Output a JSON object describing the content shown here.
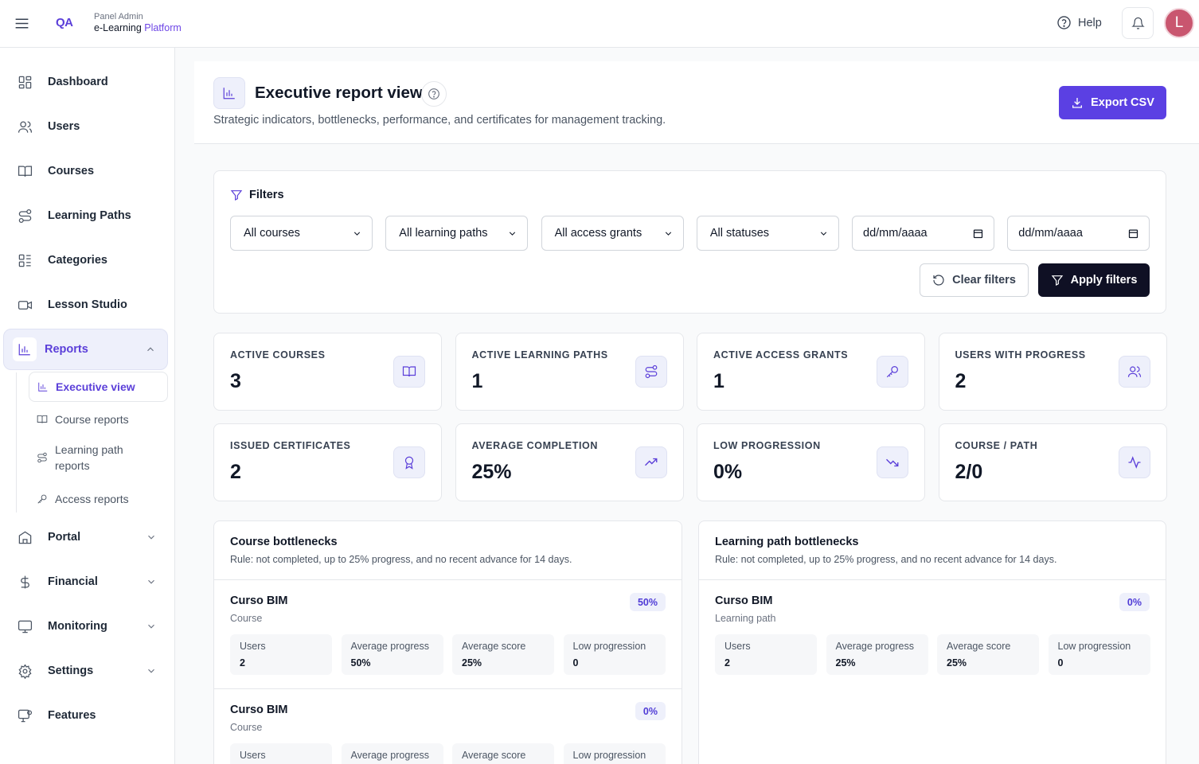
{
  "header": {
    "logo": "QA",
    "panel": "Panel Admin",
    "brand_prefix": "e-Learning",
    "brand_suffix": "Platform",
    "help": "Help",
    "avatar": "L"
  },
  "sidebar": {
    "top": [
      "Dashboard",
      "Users",
      "Courses",
      "Learning Paths",
      "Categories",
      "Lesson Studio"
    ],
    "reports": {
      "label": "Reports",
      "children": [
        "Executive view",
        "Course reports",
        "Learning path reports",
        "Access reports"
      ]
    },
    "bottom": [
      "Portal",
      "Financial",
      "Monitoring",
      "Settings",
      "Features"
    ]
  },
  "page": {
    "title": "Executive report view",
    "subtitle": "Strategic indicators, bottlenecks, performance, and certificates for management tracking.",
    "export": "Export CSV"
  },
  "filters": {
    "title": "Filters",
    "selects": [
      "All courses",
      "All learning paths",
      "All access grants",
      "All statuses"
    ],
    "dates": [
      "dd/mm/aaaa",
      "dd/mm/aaaa"
    ],
    "clear": "Clear filters",
    "apply": "Apply filters"
  },
  "kpis": [
    {
      "label": "ACTIVE COURSES",
      "value": "3"
    },
    {
      "label": "ACTIVE LEARNING PATHS",
      "value": "1"
    },
    {
      "label": "ACTIVE ACCESS GRANTS",
      "value": "1"
    },
    {
      "label": "USERS WITH PROGRESS",
      "value": "2"
    },
    {
      "label": "ISSUED CERTIFICATES",
      "value": "2"
    },
    {
      "label": "AVERAGE COMPLETION",
      "value": "25%"
    },
    {
      "label": "LOW PROGRESSION",
      "value": "0%"
    },
    {
      "label": "COURSE / PATH",
      "value": "2/0"
    }
  ],
  "bottlenecks": [
    {
      "title": "Course bottlenecks",
      "rule": "Rule: not completed, up to 25% progress, and no recent advance for 14 days.",
      "items": [
        {
          "name": "Curso BIM",
          "type": "Course",
          "badge": "50%",
          "stats": [
            {
              "label": "Users",
              "value": "2"
            },
            {
              "label": "Average progress",
              "value": "50%"
            },
            {
              "label": "Average score",
              "value": "25%"
            },
            {
              "label": "Low progression",
              "value": "0"
            }
          ]
        },
        {
          "name": "Curso BIM",
          "type": "Course",
          "badge": "0%",
          "stats": [
            {
              "label": "Users"
            },
            {
              "label": "Average progress"
            },
            {
              "label": "Average score"
            },
            {
              "label": "Low progression"
            }
          ]
        }
      ]
    },
    {
      "title": "Learning path bottlenecks",
      "rule": "Rule: not completed, up to 25% progress, and no recent advance for 14 days.",
      "items": [
        {
          "name": "Curso BIM",
          "type": "Learning path",
          "badge": "0%",
          "stats": [
            {
              "label": "Users",
              "value": "2"
            },
            {
              "label": "Average progress",
              "value": "25%"
            },
            {
              "label": "Average score",
              "value": "25%"
            },
            {
              "label": "Low progression",
              "value": "0"
            }
          ]
        }
      ]
    }
  ]
}
